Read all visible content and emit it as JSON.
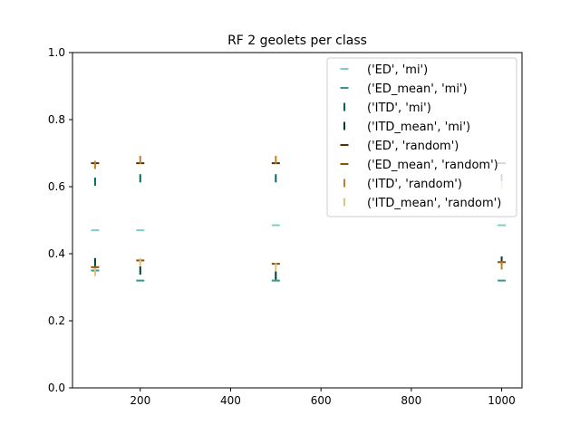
{
  "chart_data": {
    "type": "scatter",
    "title": "RF 2 geolets per class",
    "xlabel": "",
    "ylabel": "",
    "xlim": [
      50,
      1045
    ],
    "ylim": [
      0,
      1.0
    ],
    "xticks": [
      200,
      400,
      600,
      800,
      1000
    ],
    "yticks": [
      0.0,
      0.2,
      0.4,
      0.6,
      0.8,
      1.0
    ],
    "ytick_labels": [
      "0.0",
      "0.2",
      "0.4",
      "0.6",
      "0.8",
      "1.0"
    ],
    "legend_position": "top-right",
    "x": [
      100,
      200,
      500,
      1000
    ],
    "series": [
      {
        "name": "('ED', 'mi')",
        "marker": "hline",
        "color": "#80cdc1",
        "values": [
          0.47,
          0.47,
          0.485,
          0.485
        ]
      },
      {
        "name": "('ED_mean', 'mi')",
        "marker": "hline",
        "color": "#35978f",
        "values": [
          0.35,
          0.32,
          0.32,
          0.32
        ]
      },
      {
        "name": "('ITD', 'mi')",
        "marker": "vline",
        "color": "#01665e",
        "values": [
          0.615,
          0.625,
          0.625,
          0.625
        ]
      },
      {
        "name": "('ITD_mean', 'mi')",
        "marker": "vline",
        "color": "#003c30",
        "values": [
          0.375,
          0.35,
          0.335,
          0.38
        ]
      },
      {
        "name": "('ED', 'random')",
        "marker": "hline",
        "color": "#543005",
        "values": [
          0.67,
          0.67,
          0.67,
          0.67
        ]
      },
      {
        "name": "('ED_mean', 'random')",
        "marker": "hline",
        "color": "#8c510a",
        "values": [
          0.36,
          0.38,
          0.37,
          0.375
        ]
      },
      {
        "name": "('ITD', 'random')",
        "marker": "vline",
        "color": "#bf812d",
        "values": [
          0.665,
          0.68,
          0.68,
          0.365
        ]
      },
      {
        "name": "('ITD_mean', 'random')",
        "marker": "vline",
        "color": "#dfc27d",
        "values": [
          0.345,
          0.375,
          0.36,
          0.605
        ]
      }
    ]
  }
}
